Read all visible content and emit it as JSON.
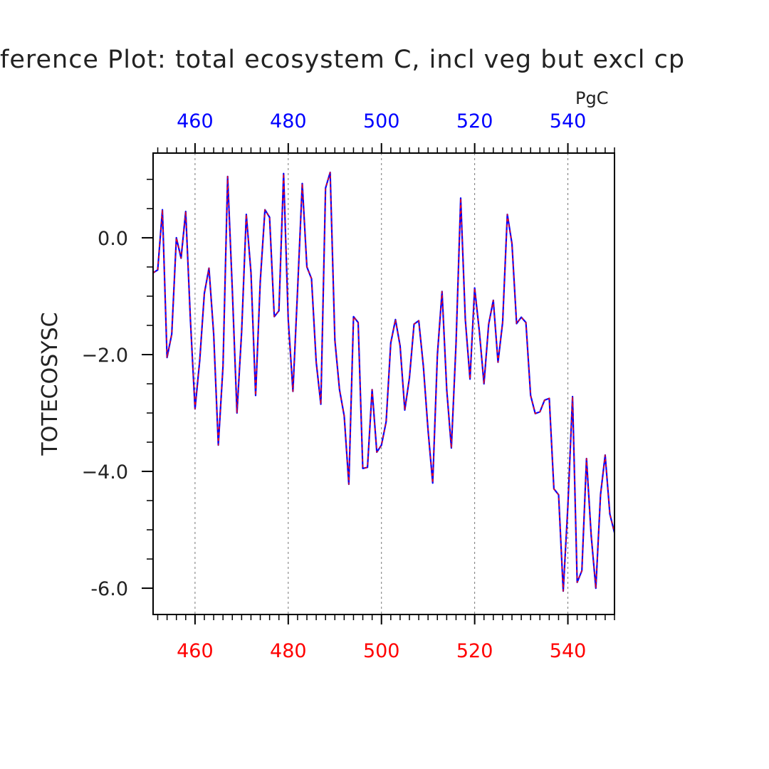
{
  "chart_data": {
    "type": "line",
    "title": "ference Plot: total ecosystem C, incl veg but excl cp",
    "ylabel": "TOTECOSYSC",
    "top_axis_units": "PgC",
    "xlim": [
      451,
      550
    ],
    "ylim": [
      -6.45,
      1.45
    ],
    "xticks": [
      460,
      480,
      500,
      520,
      540
    ],
    "xtick_labels": [
      "460",
      "480",
      "500",
      "520",
      "540"
    ],
    "top_xtick_labels": [
      "460",
      "480",
      "500",
      "520",
      "540"
    ],
    "yticks": [
      0,
      -2,
      -4,
      -6
    ],
    "ytick_labels": [
      "0.0",
      "−2.0",
      "−4.0",
      "-6.0"
    ],
    "grid": "vertical dashed at major x ticks",
    "colors": {
      "line_primary": "#0000ff",
      "line_overlay": "#ff0000",
      "bottom_ticks": "#ff0000",
      "top_ticks": "#0000ff",
      "axes": "#000000"
    },
    "series": [
      {
        "x": [
          451,
          452,
          453,
          454,
          455,
          456,
          457,
          458,
          459,
          460,
          461,
          462,
          463,
          464,
          465,
          466,
          467,
          468,
          469,
          470,
          471,
          472,
          473,
          474,
          475,
          476,
          477,
          478,
          479,
          480,
          481,
          482,
          483,
          484,
          485,
          486,
          487,
          488,
          489,
          490,
          491,
          492,
          493,
          494,
          495,
          496,
          497,
          498,
          499,
          500,
          501,
          502,
          503,
          504,
          505,
          506,
          507,
          508,
          509,
          510,
          511,
          512,
          513,
          514,
          515,
          516,
          517,
          518,
          519,
          520,
          521,
          522,
          523,
          524,
          525,
          526,
          527,
          528,
          529,
          530,
          531,
          532,
          533,
          534,
          535,
          536,
          537,
          538,
          539,
          540,
          541,
          542,
          543,
          544,
          545,
          546,
          547,
          548,
          549,
          550
        ],
        "values": [
          -0.6,
          -0.55,
          0.48,
          -2.05,
          -1.65,
          0.0,
          -0.35,
          0.45,
          -1.4,
          -2.93,
          -2.1,
          -0.95,
          -0.52,
          -1.65,
          -3.55,
          -2.2,
          1.05,
          -0.9,
          -3.0,
          -1.6,
          0.4,
          -0.6,
          -2.7,
          -0.75,
          0.48,
          0.35,
          -1.35,
          -1.25,
          1.1,
          -1.4,
          -2.63,
          -0.9,
          0.93,
          -0.5,
          -0.7,
          -2.13,
          -2.85,
          0.85,
          1.12,
          -1.75,
          -2.6,
          -3.05,
          -4.22,
          -1.35,
          -1.45,
          -3.95,
          -3.93,
          -2.6,
          -3.67,
          -3.55,
          -3.15,
          -1.8,
          -1.4,
          -1.85,
          -2.95,
          -2.4,
          -1.48,
          -1.42,
          -2.2,
          -3.3,
          -4.2,
          -2.0,
          -0.92,
          -2.6,
          -3.6,
          -1.8,
          0.68,
          -1.4,
          -2.42,
          -0.86,
          -1.6,
          -2.5,
          -1.48,
          -1.07,
          -2.13,
          -1.45,
          0.4,
          -0.1,
          -1.47,
          -1.36,
          -1.45,
          -2.7,
          -3.01,
          -2.98,
          -2.78,
          -2.75,
          -4.3,
          -4.4,
          -6.05,
          -4.6,
          -2.72,
          -5.9,
          -5.7,
          -3.78,
          -5.1,
          -6.0,
          -4.4,
          -3.72,
          -4.73,
          -5.05
        ]
      }
    ]
  }
}
